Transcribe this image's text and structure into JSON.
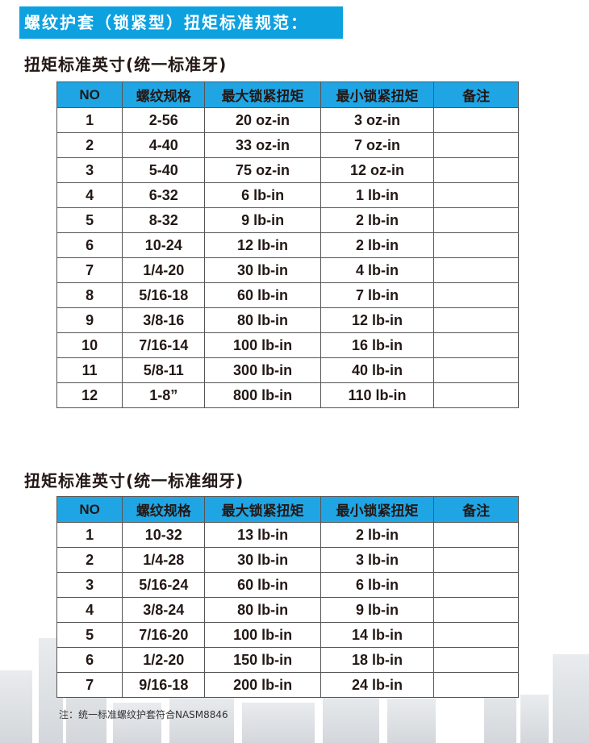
{
  "banner": "螺纹护套（锁紧型）扭矩标准规范：",
  "table1": {
    "title": "扭矩标准英寸(统一标准牙)",
    "headers": [
      "NO",
      "螺纹规格",
      "最大锁紧扭矩",
      "最小锁紧扭矩",
      "备注"
    ],
    "rows": [
      [
        "1",
        "2-56",
        "20 oz-in",
        "3 oz-in",
        ""
      ],
      [
        "2",
        "4-40",
        "33 oz-in",
        "7 oz-in",
        ""
      ],
      [
        "3",
        "5-40",
        "75 oz-in",
        "12 oz-in",
        ""
      ],
      [
        "4",
        "6-32",
        "6 lb-in",
        "1 lb-in",
        ""
      ],
      [
        "5",
        "8-32",
        "9 lb-in",
        "2 lb-in",
        ""
      ],
      [
        "6",
        "10-24",
        "12 lb-in",
        "2 lb-in",
        ""
      ],
      [
        "7",
        "1/4-20",
        "30 lb-in",
        "4 lb-in",
        ""
      ],
      [
        "8",
        "5/16-18",
        "60 lb-in",
        "7 lb-in",
        ""
      ],
      [
        "9",
        "3/8-16",
        "80 lb-in",
        "12 lb-in",
        ""
      ],
      [
        "10",
        "7/16-14",
        "100 lb-in",
        "16 lb-in",
        ""
      ],
      [
        "11",
        "5/8-11",
        "300 lb-in",
        "40 lb-in",
        ""
      ],
      [
        "12",
        "1-8”",
        "800 lb-in",
        "110 lb-in",
        ""
      ]
    ]
  },
  "table2": {
    "title": "扭矩标准英寸(统一标准细牙)",
    "headers": [
      "NO",
      "螺纹规格",
      "最大锁紧扭矩",
      "最小锁紧扭矩",
      "备注"
    ],
    "rows": [
      [
        "1",
        "10-32",
        "13 lb-in",
        "2 lb-in",
        ""
      ],
      [
        "2",
        "1/4-28",
        "30 lb-in",
        "3 lb-in",
        ""
      ],
      [
        "3",
        "5/16-24",
        "60 lb-in",
        "6 lb-in",
        ""
      ],
      [
        "4",
        "3/8-24",
        "80 lb-in",
        "9 lb-in",
        ""
      ],
      [
        "5",
        "7/16-20",
        "100 lb-in",
        "14 lb-in",
        ""
      ],
      [
        "6",
        "1/2-20",
        "150 lb-in",
        "18 lb-in",
        ""
      ],
      [
        "7",
        "9/16-18",
        "200 lb-in",
        "24 lb-in",
        ""
      ]
    ]
  },
  "note": "注：统一标准螺纹护套符合NASM8846",
  "colors": {
    "banner": "#0ea1e0",
    "header": "#20a5e4"
  }
}
